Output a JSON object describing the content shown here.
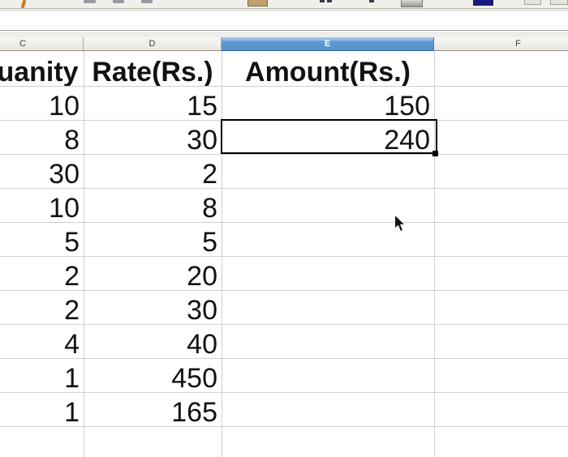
{
  "toolbar": {
    "icons": [
      "format-paintbrush-icon",
      "style-bar-icon-1",
      "style-bar-icon-2",
      "style-bar-icon-3",
      "background-color-icon",
      "sort-mark-icon-1",
      "sort-mark-icon-2",
      "sort-mark-icon-3",
      "borders-button-icon",
      "font-color-icon",
      "toolbar-button-icon-1",
      "toolbar-button-icon-2"
    ]
  },
  "formula_bar": {
    "value": ""
  },
  "column_headers": {
    "items": [
      "C",
      "D",
      "E",
      "F"
    ],
    "selected": "E"
  },
  "sheet": {
    "header_row": {
      "c": "Quanity",
      "d": "Rate(Rs.)",
      "e": "Amount(Rs.)"
    },
    "rows": [
      {
        "c": "10",
        "d": "15",
        "e": "150"
      },
      {
        "c": "8",
        "d": "30",
        "e": "240"
      },
      {
        "c": "30",
        "d": "2",
        "e": ""
      },
      {
        "c": "10",
        "d": "8",
        "e": ""
      },
      {
        "c": "5",
        "d": "5",
        "e": ""
      },
      {
        "c": "2",
        "d": "20",
        "e": ""
      },
      {
        "c": "2",
        "d": "30",
        "e": ""
      },
      {
        "c": "4",
        "d": "40",
        "e": ""
      },
      {
        "c": "1",
        "d": "450",
        "e": ""
      },
      {
        "c": "1",
        "d": "165",
        "e": ""
      }
    ],
    "selected_cell": {
      "column": "E",
      "value": "240"
    }
  },
  "colors": {
    "selected_header_blue": "#5b92cc",
    "grid_line": "#d2d0cc",
    "header_bg": "#f3f1ed",
    "toolbar_bg": "#f1efeb",
    "font_color_swatch": "#18187e",
    "cell_text": "#121212"
  }
}
